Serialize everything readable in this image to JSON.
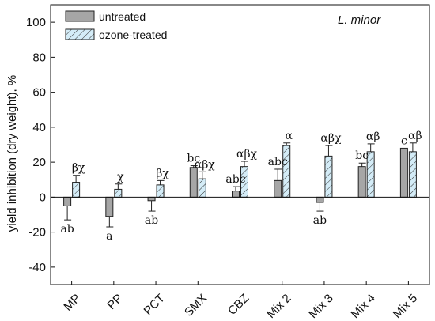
{
  "chart_data": {
    "type": "bar",
    "ylabel": "yield inhibition (dry weight), %",
    "ylim": [
      -50,
      110
    ],
    "yticks": [
      -40,
      -20,
      0,
      20,
      40,
      60,
      80,
      100
    ],
    "annotation": "L. minor",
    "categories": [
      "MP",
      "PP",
      "PCT",
      "SMX",
      "CBZ",
      "Mix 2",
      "Mix 3",
      "Mix 4",
      "Mix 5"
    ],
    "series": [
      {
        "name": "untreated",
        "color": "#a6a6a6",
        "pattern": "solid",
        "values": [
          -5,
          -11,
          -2,
          17,
          3.5,
          9.5,
          -3,
          17.5,
          28
        ],
        "errors": [
          8,
          6,
          6,
          1,
          2.5,
          6.5,
          5,
          2,
          0
        ],
        "labels": [
          "ab",
          "a",
          "ab",
          "bc",
          "abc",
          "abc",
          "ab",
          "bc",
          "c"
        ]
      },
      {
        "name": "ozone-treated",
        "color": "#d4ecf7",
        "pattern": "hatched",
        "values": [
          8.5,
          4.5,
          7,
          10.5,
          17.5,
          29.5,
          23.5,
          26,
          26
        ],
        "errors": [
          4,
          3,
          2.5,
          4,
          3,
          1.5,
          6,
          4.5,
          5
        ],
        "labels": [
          "βχ",
          "χ",
          "βχ",
          "αβχ",
          "αβχ",
          "α",
          "αβχ",
          "αβ",
          "αβ"
        ]
      }
    ]
  }
}
